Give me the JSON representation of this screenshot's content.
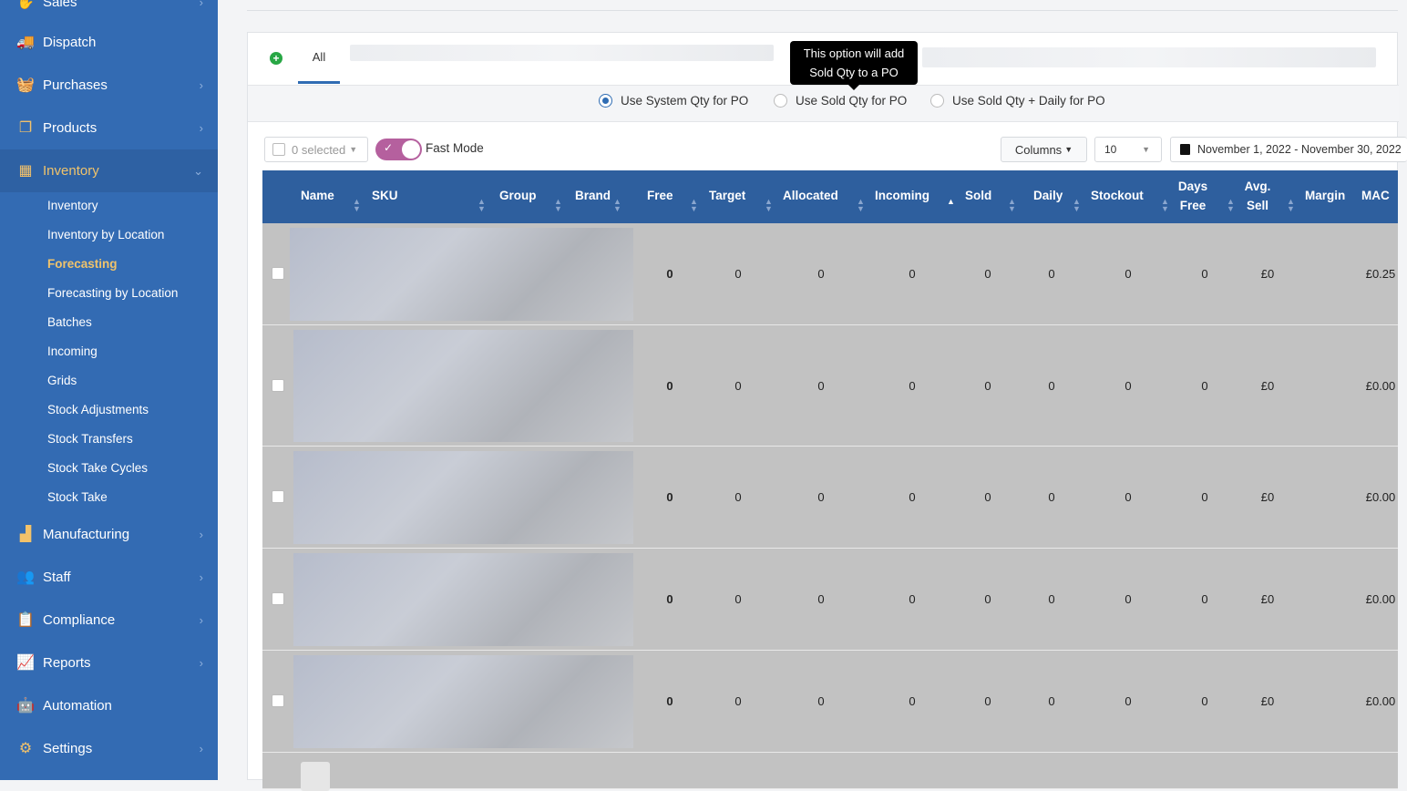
{
  "sidebar": {
    "items": [
      {
        "label": "Sales",
        "icon": "hand-coin-icon"
      },
      {
        "label": "Dispatch",
        "icon": "truck-icon"
      },
      {
        "label": "Purchases",
        "icon": "basket-icon"
      },
      {
        "label": "Products",
        "icon": "copy-icon"
      },
      {
        "label": "Inventory",
        "icon": "boxes-icon",
        "active": true
      },
      {
        "label": "Manufacturing",
        "icon": "factory-icon"
      },
      {
        "label": "Staff",
        "icon": "users-icon"
      },
      {
        "label": "Compliance",
        "icon": "clipboard-icon"
      },
      {
        "label": "Reports",
        "icon": "chart-line-icon"
      },
      {
        "label": "Automation",
        "icon": "robot-icon"
      },
      {
        "label": "Settings",
        "icon": "gear-icon"
      }
    ],
    "inventory_sub": [
      "Inventory",
      "Inventory by Location",
      "Forecasting",
      "Forecasting by Location",
      "Batches",
      "Incoming",
      "Grids",
      "Stock Adjustments",
      "Stock Transfers",
      "Stock Take Cycles",
      "Stock Take"
    ],
    "active_sub": "Forecasting"
  },
  "tabs": {
    "all": "All"
  },
  "tooltip": {
    "line1": "This option will add",
    "line2": "Sold Qty to a PO"
  },
  "po_options": [
    {
      "label": "Use System Qty for PO",
      "selected": true
    },
    {
      "label": "Use Sold Qty for PO",
      "selected": false
    },
    {
      "label": "Use Sold Qty + Daily for PO",
      "selected": false
    }
  ],
  "toolbar": {
    "selected": "0 selected",
    "fast_mode": "Fast Mode",
    "fast_mode_on": true,
    "columns": "Columns",
    "page_size": "10",
    "date_range": "November 1, 2022 - November 30, 2022"
  },
  "table": {
    "headers": [
      "Name",
      "SKU",
      "Group",
      "Brand",
      "Free",
      "Target",
      "Allocated",
      "Incoming",
      "Sold",
      "Daily",
      "Stockout",
      "Days Free",
      "Avg. Sell",
      "Margin",
      "MAC"
    ],
    "rows": [
      {
        "free": "0",
        "target": "0",
        "allocated": "0",
        "incoming": "0",
        "sold": "0",
        "daily": "0",
        "stockout": "0",
        "days_free": "0",
        "avg_sell": "£0",
        "margin": "",
        "mac": "£0.25"
      },
      {
        "free": "0",
        "target": "0",
        "allocated": "0",
        "incoming": "0",
        "sold": "0",
        "daily": "0",
        "stockout": "0",
        "days_free": "0",
        "avg_sell": "£0",
        "margin": "",
        "mac": "£0.00"
      },
      {
        "free": "0",
        "target": "0",
        "allocated": "0",
        "incoming": "0",
        "sold": "0",
        "daily": "0",
        "stockout": "0",
        "days_free": "0",
        "avg_sell": "£0",
        "margin": "",
        "mac": "£0.00"
      },
      {
        "free": "0",
        "target": "0",
        "allocated": "0",
        "incoming": "0",
        "sold": "0",
        "daily": "0",
        "stockout": "0",
        "days_free": "0",
        "avg_sell": "£0",
        "margin": "",
        "mac": "£0.00"
      },
      {
        "free": "0",
        "target": "0",
        "allocated": "0",
        "incoming": "0",
        "sold": "0",
        "daily": "0",
        "stockout": "0",
        "days_free": "0",
        "avg_sell": "£0",
        "margin": "",
        "mac": "£0.00"
      }
    ]
  },
  "colors": {
    "sidebar": "#336bb3",
    "accent": "#f0c36b",
    "table_header": "#2e5f9e",
    "toggle": "#b5609e"
  }
}
